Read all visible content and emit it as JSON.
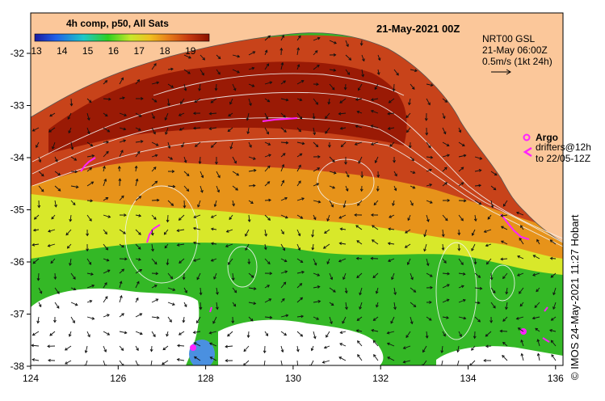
{
  "title": "21-May-2021 00Z",
  "colorbar": {
    "label": "4h comp, p50, All Sats",
    "ticks": [
      "13",
      "14",
      "15",
      "16",
      "17",
      "18",
      "19"
    ]
  },
  "current_info": {
    "line1": "NRT00 GSL",
    "line2": "21-May 06:00Z",
    "line3": "0.5m/s (1kt 24h)"
  },
  "legend": {
    "argo_label": "Argo",
    "drifters_line1": "drifters@12h",
    "drifters_line2": "to 22/05-12Z"
  },
  "credit": "© IMOS 24-May-2021 11:27 Hobart",
  "axes": {
    "x_ticks": [
      "124",
      "126",
      "128",
      "130",
      "132",
      "134",
      "136"
    ],
    "y_ticks": [
      "-32",
      "-33",
      "-34",
      "-35",
      "-36",
      "-37",
      "-38"
    ]
  },
  "colors": {
    "land": "#fbc79a",
    "sst_warm": "#a01a00",
    "sst_mid": "#e08a10",
    "sst_cool": "#2ec21e",
    "no_data": "#ffffff",
    "drifter": "#ff22ff"
  }
}
